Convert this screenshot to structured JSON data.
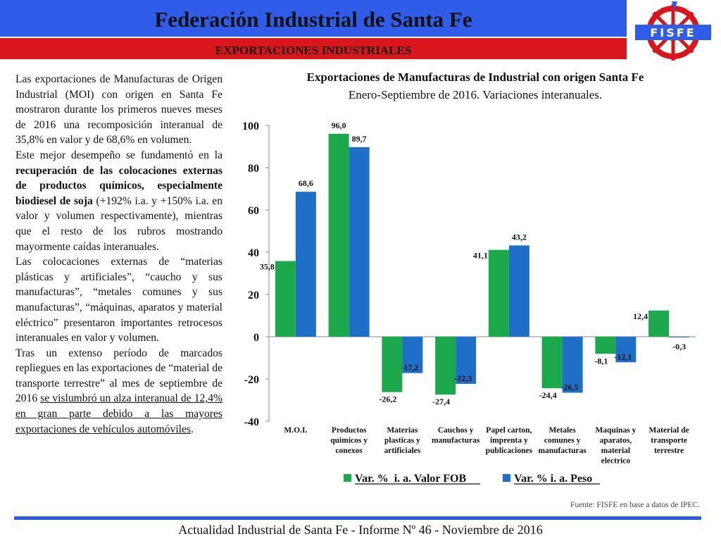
{
  "header": {
    "title": "Federación Industrial de Santa Fe",
    "subtitle": "EXPORTACIONES INDUSTRIALES",
    "logo_text": "FISFE"
  },
  "body": {
    "p1": "Las exportaciones de Manufacturas de Origen Industrial (MOI) con origen en Santa Fe mostraron durante los primeros nueves meses de 2016 una recomposición interanual de 35,8% en valor y de 68,6% en volumen.",
    "p2_a": "Este mejor desempeño se fundamentó en la ",
    "p2_b": "recuperación de las colocaciones externas de productos químicos, especialmente biodiesel de soja",
    "p2_c": " (+192% i.a. y +150% i.a. en valor y volumen respectivamente), mientras que el resto de los rubros mostrando mayormente caídas interanuales.",
    "p3": "Las colocaciones externas de “materias plásticas y artificiales”, “caucho y sus manufacturas”, “metales comunes y sus manufacturas”, “máquinas, aparatos y material eléctrico” presentaron importantes retrocesos interanuales en valor y volumen.",
    "p4_a": "Tras un extenso período de marcados repliegues en las exportaciones de “material de transporte terrestre” al mes de septiembre de 2016 ",
    "p4_b": "se vislumbró un alza interanual de 12,4% en gran parte debido a las mayores exportaciones de vehículos automóviles",
    "p4_c": "."
  },
  "chart_data": {
    "type": "bar",
    "title": "Exportaciones de Manufacturas de Industrial con origen Santa Fe",
    "subtitle": "Enero-Septiembre de 2016. Variaciones interanuales.",
    "categories": [
      [
        "M.O.I."
      ],
      [
        "Productos",
        "quimicos y",
        "conexos"
      ],
      [
        "Materias",
        "plasticas y",
        "artificiales"
      ],
      [
        "Cauchos y",
        "manufacturas"
      ],
      [
        "Papel carton,",
        "imprenta y",
        "publicaciones"
      ],
      [
        "Metales",
        "comunes y",
        "manufacturas"
      ],
      [
        "Maquinas y",
        "aparatos,",
        "material",
        "electrico"
      ],
      [
        "Material de",
        "transporte",
        "terrestre"
      ]
    ],
    "series": [
      {
        "name": "Var. %  i. a. Valor FOB",
        "color": "#1ca94b",
        "values": [
          35.8,
          96.0,
          -26.2,
          -27.4,
          41.1,
          -24.4,
          -8.1,
          12.4
        ],
        "labels": [
          "35,8",
          "96,0",
          "-26,2",
          "-27,4",
          "41,1",
          "-24,4",
          "-8,1",
          "12,4"
        ]
      },
      {
        "name": "Var. % i. a. Peso",
        "color": "#1f6fc8",
        "values": [
          68.6,
          89.7,
          -17.2,
          -22.3,
          43.2,
          -26.5,
          -12.1,
          -0.3
        ],
        "labels": [
          "68,6",
          "89,7",
          "-17,2",
          "-22,3",
          "43,2",
          "-26,5",
          "-12,1",
          "-0,3"
        ]
      }
    ],
    "ylim": [
      -40,
      100
    ],
    "yticks": [
      -40,
      -20,
      0,
      20,
      40,
      60,
      80,
      100
    ],
    "legend": "bottom",
    "grid": false
  },
  "source": "Fuente: FISFE en base a datos de IPEC.",
  "footer": "Actualidad Industrial de Santa Fe - Informe Nº 46 - Noviembre de 2016"
}
